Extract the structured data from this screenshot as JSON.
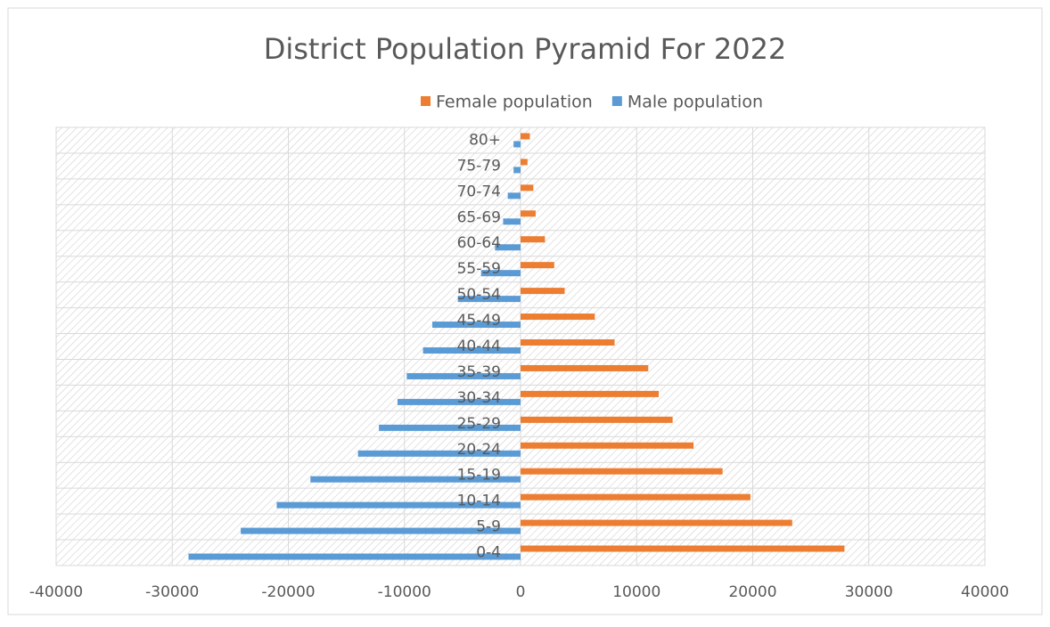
{
  "chart_data": {
    "type": "bar",
    "orientation": "horizontal",
    "title": "District Population Pyramid For 2022",
    "categories": [
      "0-4",
      "5-9",
      "10-14",
      "15-19",
      "20-24",
      "25-29",
      "30-34",
      "35-39",
      "40-44",
      "45-49",
      "50-54",
      "55-59",
      "60-64",
      "65-69",
      "70-74",
      "75-79",
      "80+"
    ],
    "series": [
      {
        "name": "Female population",
        "color": "#ed7d31",
        "values": [
          27900,
          23400,
          19800,
          17400,
          14900,
          13100,
          11900,
          11000,
          8100,
          6400,
          3800,
          2900,
          2100,
          1300,
          1100,
          600,
          800
        ]
      },
      {
        "name": "Male population",
        "color": "#5b9bd5",
        "values": [
          -28600,
          -24100,
          -21000,
          -18100,
          -14000,
          -12200,
          -10600,
          -9800,
          -8400,
          -7600,
          -5400,
          -3400,
          -2200,
          -1500,
          -1100,
          -600,
          -600
        ]
      }
    ],
    "xlim": [
      -40000,
      40000
    ],
    "xticks": [
      -40000,
      -30000,
      -20000,
      -10000,
      0,
      10000,
      20000,
      30000,
      40000
    ],
    "grid": true,
    "legend": "top"
  }
}
